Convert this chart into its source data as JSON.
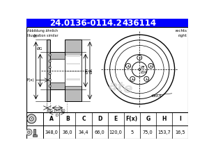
{
  "title_part": "24.0136-0114.2",
  "title_ref": "436114",
  "subtitle_left": "Abbildung ähnlich\nIllustration similar",
  "subtitle_right": "rechts\nright",
  "table_headers_display": [
    "A",
    "B",
    "C",
    "D",
    "E",
    "F(x)",
    "G",
    "H",
    "I"
  ],
  "table_values": [
    "348,0",
    "36,0",
    "34,4",
    "66,0",
    "120,0",
    "5",
    "75,0",
    "153,7",
    "16,5"
  ],
  "bg_color": "#ffffff",
  "title_bg": "#0000ff",
  "title_fg": "#ffffff",
  "line_color": "#000000",
  "watermark_color": "#cccccc",
  "diag_bg": "#f5f5f5"
}
